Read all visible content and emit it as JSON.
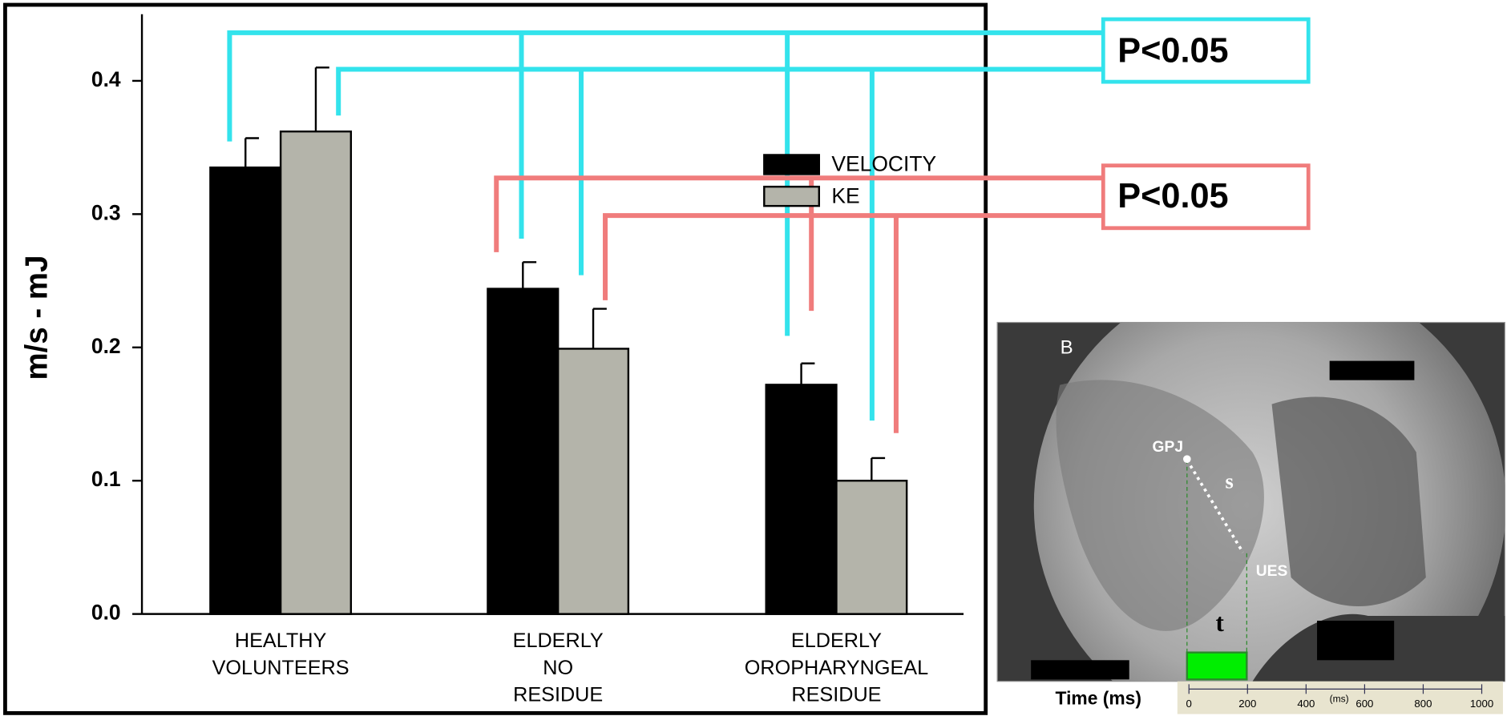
{
  "chart_data": {
    "type": "bar",
    "y_label": "m/s - mJ",
    "categories": [
      [
        "HEALTHY",
        "VOLUNTEERS"
      ],
      [
        "ELDERLY",
        "NO",
        "RESIDUE"
      ],
      [
        "ELDERLY",
        "OROPHARYNGEAL",
        "RESIDUE"
      ]
    ],
    "series": [
      {
        "name": "VELOCITY",
        "color": "#000000",
        "values": [
          0.335,
          0.244,
          0.172
        ],
        "errors": [
          0.022,
          0.02,
          0.016
        ]
      },
      {
        "name": "KE",
        "color": "#b4b4aa",
        "values": [
          0.362,
          0.199,
          0.1
        ],
        "errors": [
          0.048,
          0.03,
          0.017
        ]
      }
    ],
    "ylim": [
      0,
      0.45
    ],
    "yticks": [
      {
        "value": 0,
        "label": "0.0"
      },
      0.1,
      0.2,
      0.3,
      0.4
    ],
    "legend": "upper right",
    "annotations": [
      {
        "text": "P<0.05",
        "color": "#33e3ec"
      },
      {
        "text": "P<0.05",
        "color": "#f07c7c"
      }
    ]
  },
  "inset": {
    "label": "B",
    "points": [
      "GPJ",
      "UES"
    ],
    "distance": "s",
    "time": "t",
    "x_title": "Time (ms)",
    "unit": "(ms)",
    "xlim": [
      0,
      1000
    ],
    "xticks": [
      0,
      200,
      400,
      600,
      800,
      1000
    ]
  }
}
